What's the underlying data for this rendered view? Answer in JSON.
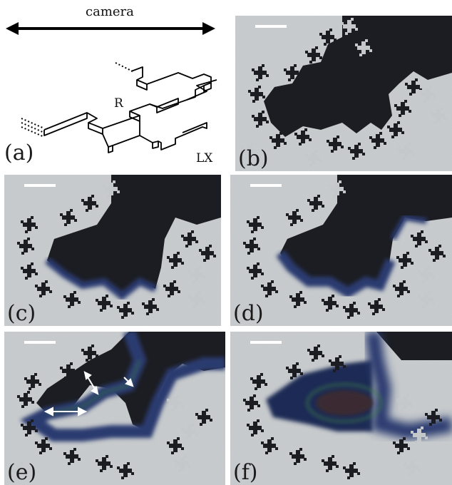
{
  "figure": {
    "panel_a": {
      "label": "(a)",
      "camera_label": "camera",
      "r_label": "R",
      "lx_label": "LX"
    },
    "panels": [
      {
        "id": "b",
        "label": "(b)"
      },
      {
        "id": "c",
        "label": "(c)"
      },
      {
        "id": "d",
        "label": "(d)"
      },
      {
        "id": "e",
        "label": "(e)"
      },
      {
        "id": "f",
        "label": "(f)"
      }
    ]
  },
  "colors": {
    "dark_fluid": "#1c1d22",
    "light_region": "#c4c8ca",
    "glow_blue": "#2a3a70",
    "glow_green": "#3d7a48",
    "scale_bar": "#ffffff"
  }
}
